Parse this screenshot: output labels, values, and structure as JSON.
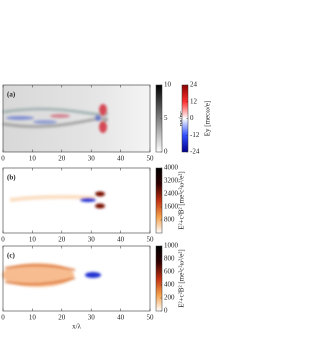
{
  "chart_data": [
    {
      "type": "heatmap",
      "panel_label": "(a)",
      "xlim": [
        0,
        50
      ],
      "xticks": [
        0,
        10,
        20,
        30,
        40,
        50
      ],
      "colorbars": [
        {
          "label": "ne/nc",
          "clim": [
            0,
            10
          ],
          "ticks": [
            0,
            5,
            10
          ],
          "colors": [
            "#ffffff",
            "#000000"
          ]
        },
        {
          "label": "Ey [mecω/e]",
          "clim": [
            -24,
            24
          ],
          "ticks": [
            -24,
            -12,
            0,
            12,
            24
          ],
          "colors": [
            "#00008b",
            "#3050ff",
            "#ffffff",
            "#ff3030",
            "#8b0000"
          ]
        }
      ]
    },
    {
      "type": "heatmap",
      "panel_label": "(b)",
      "xlim": [
        0,
        50
      ],
      "xticks": [
        0,
        10,
        20,
        30,
        40,
        50
      ],
      "colorbars": [
        {
          "label": "E²+c²B² [me²c²ω²/e²]",
          "clim": [
            0,
            4000
          ],
          "ticks": [
            800,
            1600,
            2400,
            3200,
            4000
          ],
          "colors": [
            "#ffffff",
            "#f5a04a",
            "#c03010",
            "#300000",
            "#000000"
          ]
        }
      ]
    },
    {
      "type": "heatmap",
      "panel_label": "(c)",
      "xlim": [
        0,
        50
      ],
      "xticks": [
        0,
        10,
        20,
        30,
        40,
        50
      ],
      "xlabel": "x/λ",
      "colorbars": [
        {
          "label": "E²+c²B² [me²c²ω²/e²]",
          "clim": [
            0,
            1000
          ],
          "ticks": [
            0,
            200,
            400,
            600,
            800,
            1000
          ],
          "colors": [
            "#ffffff",
            "#f5a04a",
            "#c03010",
            "#300000",
            "#000000"
          ]
        }
      ]
    }
  ]
}
